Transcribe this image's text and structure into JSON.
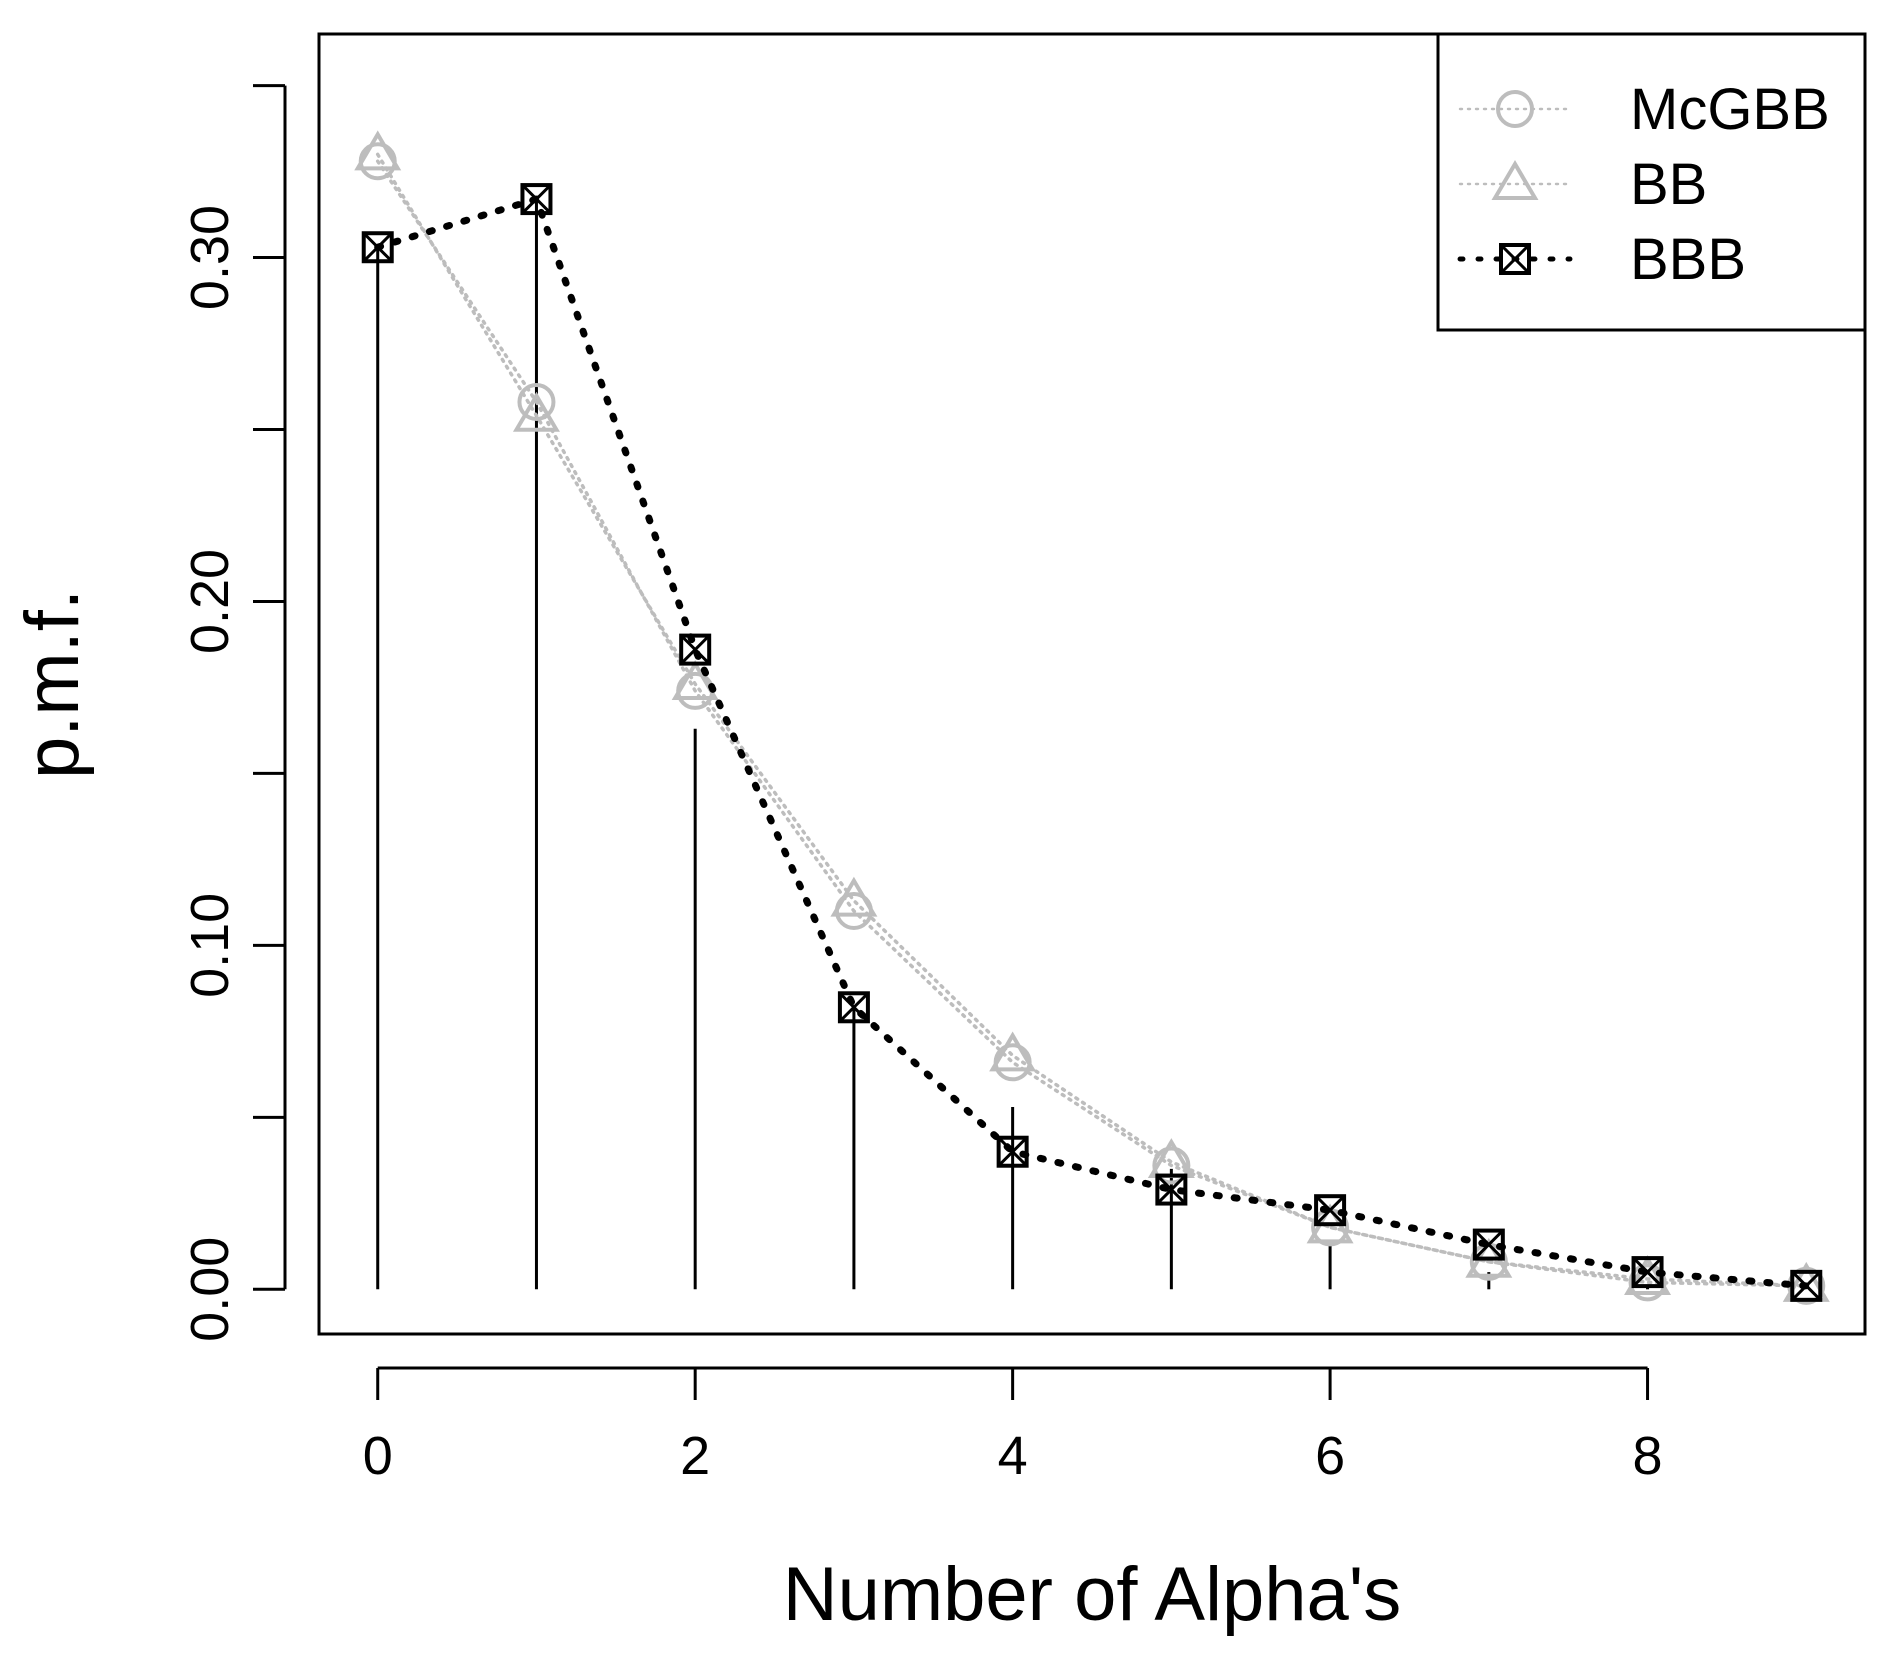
{
  "chart_data": {
    "type": "line",
    "title": "",
    "xlabel": "Number of Alpha's",
    "ylabel": "p.m.f.",
    "xlim": [
      -0.37,
      9.37
    ],
    "ylim": [
      -0.013,
      0.365
    ],
    "x_ticks": [
      0,
      2,
      4,
      6,
      8
    ],
    "x_tick_labels": [
      "0",
      "2",
      "4",
      "6",
      "8"
    ],
    "y_ticks": [
      0.0,
      0.05,
      0.1,
      0.15,
      0.2,
      0.25,
      0.3,
      0.35
    ],
    "y_tick_labels": [
      "0.00",
      "",
      "0.10",
      "",
      "0.20",
      "",
      "0.30",
      ""
    ],
    "x": [
      0,
      1,
      2,
      3,
      4,
      5,
      6,
      7,
      8,
      9
    ],
    "observed": [
      0.303,
      0.318,
      0.163,
      0.082,
      0.053,
      0.035,
      0.014,
      0.005,
      0.001,
      0.0
    ],
    "series": [
      {
        "name": "McGBB",
        "marker": "circle",
        "color": "#bdbdbd",
        "values": [
          0.328,
          0.258,
          0.174,
          0.11,
          0.066,
          0.036,
          0.018,
          0.008,
          0.002,
          0.001
        ]
      },
      {
        "name": "BB",
        "marker": "triangle",
        "color": "#bdbdbd",
        "values": [
          0.33,
          0.254,
          0.176,
          0.113,
          0.068,
          0.037,
          0.018,
          0.008,
          0.003,
          0.001
        ]
      },
      {
        "name": "BBB",
        "marker": "box-x",
        "color": "#000000",
        "values": [
          0.303,
          0.317,
          0.186,
          0.082,
          0.04,
          0.029,
          0.023,
          0.013,
          0.005,
          0.001
        ]
      }
    ],
    "legend_position": "top-right",
    "grid": false
  }
}
